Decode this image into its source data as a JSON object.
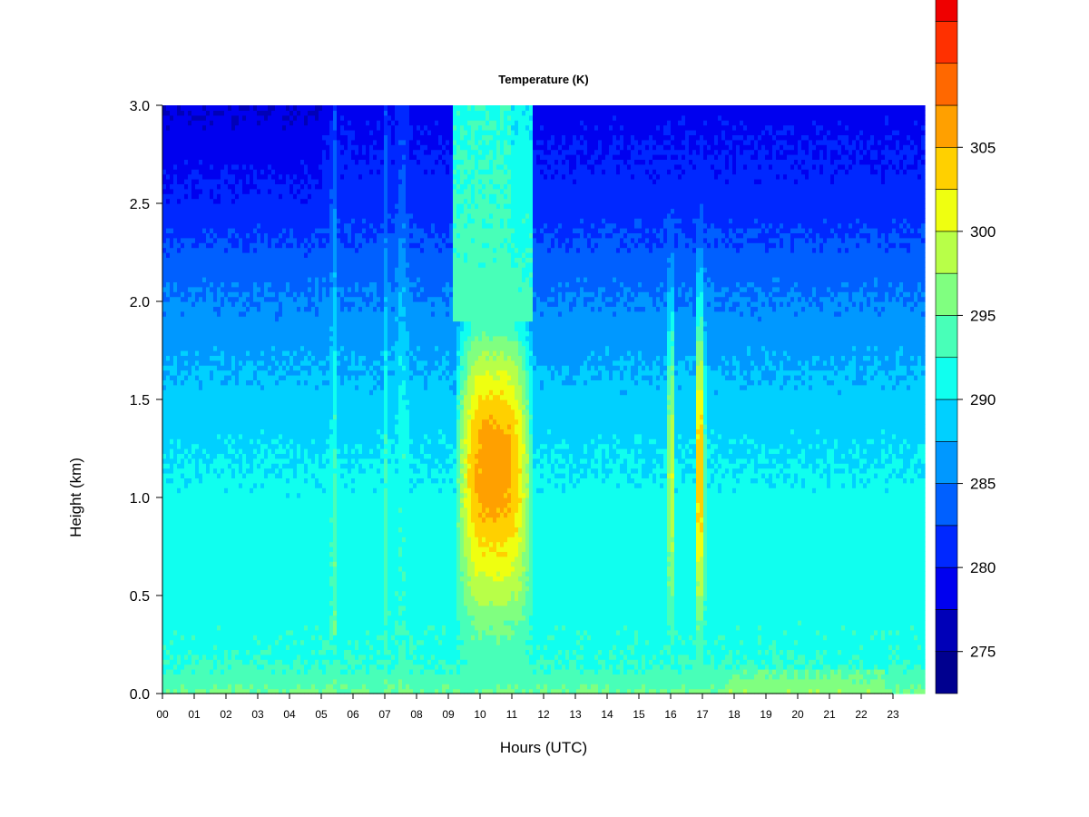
{
  "chart_data": {
    "type": "heatmap",
    "title": "Temperature (K)",
    "xlabel": "Hours (UTC)",
    "ylabel": "Height (km)",
    "xlim": [
      0,
      24
    ],
    "ylim": [
      0,
      3.0
    ],
    "x_ticks": [
      "00",
      "01",
      "02",
      "03",
      "04",
      "05",
      "06",
      "07",
      "08",
      "09",
      "10",
      "11",
      "12",
      "13",
      "14",
      "15",
      "16",
      "17",
      "18",
      "19",
      "20",
      "21",
      "22",
      "23"
    ],
    "y_ticks": [
      "0.0",
      "0.5",
      "1.0",
      "1.5",
      "2.0",
      "2.5",
      "3.0"
    ],
    "colorbar": {
      "min": 272.5,
      "max": 307.5,
      "step": 2.5,
      "ticks": [
        "275",
        "280",
        "285",
        "290",
        "295",
        "300",
        "305"
      ],
      "colors": [
        "#00008f",
        "#0000b8",
        "#0000ef",
        "#0028ff",
        "#0060ff",
        "#0098ff",
        "#00d0ff",
        "#10ffef",
        "#48ffb8",
        "#80ff80",
        "#b8ff48",
        "#efff10",
        "#ffd000",
        "#ffa000",
        "#ff6800",
        "#ff3000",
        "#ef0000",
        "#b80000",
        "#800000"
      ]
    },
    "grid": false,
    "legend": "colorbar right",
    "profile_model": {
      "heights_km": [
        0.0,
        0.05,
        0.1,
        0.2,
        0.5,
        1.0,
        1.5,
        2.0,
        2.5,
        3.0
      ],
      "background_K": [
        295.5,
        294.2,
        293.0,
        292.0,
        291.5,
        290.8,
        288.5,
        285.2,
        281.2,
        279.0
      ]
    },
    "warm_events": [
      {
        "start_utc": 9.2,
        "end_utc": 11.7,
        "peak_K": 306.5,
        "min_height_km": 0.45
      },
      {
        "start_utc": 15.9,
        "end_utc": 16.15,
        "peak_K": 299.5,
        "min_height_km": 0.5
      },
      {
        "start_utc": 16.75,
        "end_utc": 17.1,
        "peak_K": 304.5,
        "min_height_km": 0.45
      }
    ]
  }
}
